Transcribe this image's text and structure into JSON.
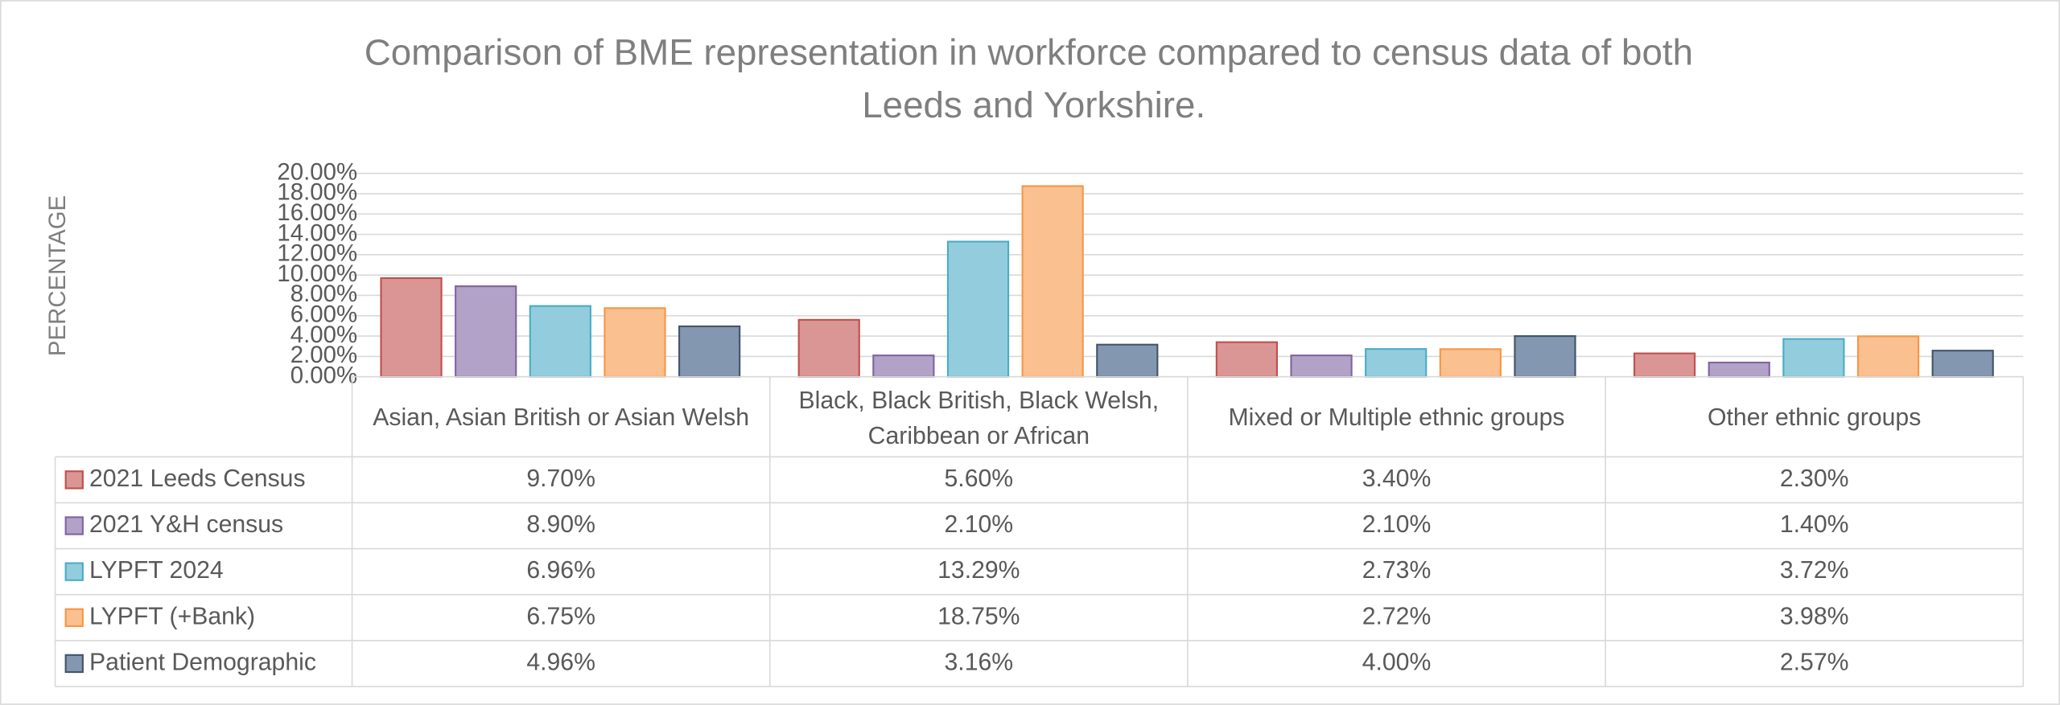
{
  "chart_data": {
    "type": "bar",
    "title": "Comparison of BME representation in workforce compared to census data of both Leeds and Yorkshire.",
    "y_label": "PERCENTAGE",
    "categories": [
      "Asian, Asian British or Asian Welsh",
      "Black, Black British, Black Welsh, Caribbean or African",
      "Mixed or Multiple ethnic groups",
      "Other ethnic groups"
    ],
    "series": [
      {
        "name": "2021 Leeds Census",
        "color": "#d99694",
        "border_color": "#c0504d",
        "values": [
          9.7,
          5.6,
          3.4,
          2.3
        ],
        "value_labels": [
          "9.70%",
          "5.60%",
          "3.40%",
          "2.30%"
        ]
      },
      {
        "name": "2021 Y&H census",
        "color": "#b3a2c7",
        "border_color": "#8064a2",
        "values": [
          8.9,
          2.1,
          2.1,
          1.4
        ],
        "value_labels": [
          "8.90%",
          "2.10%",
          "2.10%",
          "1.40%"
        ]
      },
      {
        "name": "LYPFT 2024",
        "color": "#93cddd",
        "border_color": "#4bacc6",
        "values": [
          6.96,
          13.29,
          2.73,
          3.72
        ],
        "value_labels": [
          "6.96%",
          "13.29%",
          "2.73%",
          "3.72%"
        ]
      },
      {
        "name": "LYPFT (+Bank)",
        "color": "#fac090",
        "border_color": "#f79646",
        "values": [
          6.75,
          18.75,
          2.72,
          3.98
        ],
        "value_labels": [
          "6.75%",
          "18.75%",
          "2.72%",
          "3.98%"
        ]
      },
      {
        "name": "Patient Demographic",
        "color": "#8497b0",
        "border_color": "#44546a",
        "values": [
          4.96,
          3.16,
          4.0,
          2.57
        ],
        "value_labels": [
          "4.96%",
          "3.16%",
          "4.00%",
          "2.57%"
        ]
      }
    ],
    "ylim": [
      0,
      20
    ],
    "yticks": [
      {
        "value": 0,
        "label": "0.00%"
      },
      {
        "value": 2,
        "label": "2.00%"
      },
      {
        "value": 4,
        "label": "4.00%"
      },
      {
        "value": 6,
        "label": "6.00%"
      },
      {
        "value": 8,
        "label": "8.00%"
      },
      {
        "value": 10,
        "label": "10.00%"
      },
      {
        "value": 12,
        "label": "12.00%"
      },
      {
        "value": 14,
        "label": "14.00%"
      },
      {
        "value": 16,
        "label": "16.00%"
      },
      {
        "value": 18,
        "label": "18.00%"
      },
      {
        "value": 20,
        "label": "20.00%"
      }
    ],
    "grid": true,
    "data_table": true
  }
}
